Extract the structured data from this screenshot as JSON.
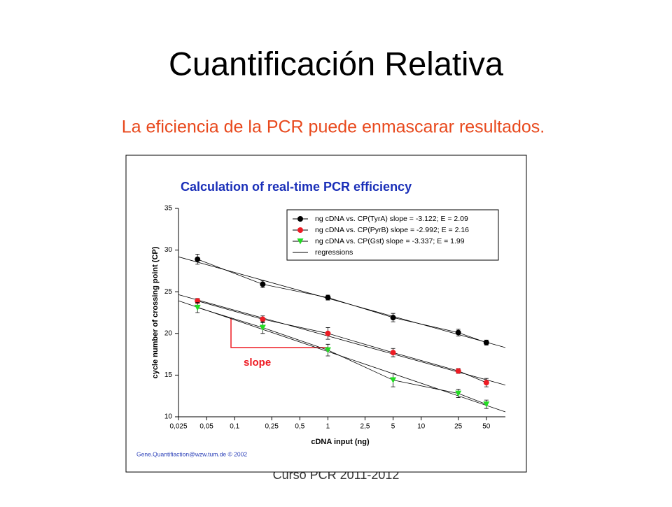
{
  "slide_title": "Cuantificación Relativa",
  "subtitle": "La eficiencia de la PCR puede enmascarar resultados.",
  "footer": "Curso PCR 2011-2012",
  "chart_data": {
    "type": "scatter",
    "title": "Calculation of real-time PCR efficiency",
    "x_label": "cDNA input (ng)",
    "y_label": "cycle number of crossing point (CP)",
    "credit": "Gene.Quantifiaction@wzw.tum.de © 2002",
    "annotation": "slope",
    "x_log": true,
    "xlim": [
      0.025,
      80
    ],
    "xticks": [
      {
        "value": 0.025,
        "label": "0,025"
      },
      {
        "value": 0.05,
        "label": "0,05"
      },
      {
        "value": 0.1,
        "label": "0,1"
      },
      {
        "value": 0.25,
        "label": "0,25"
      },
      {
        "value": 0.5,
        "label": "0,5"
      },
      1,
      {
        "value": 2.5,
        "label": "2,5"
      },
      5,
      10,
      25,
      50
    ],
    "ylim": [
      10,
      35
    ],
    "yticks": [
      10,
      15,
      20,
      25,
      30,
      35
    ],
    "x": [
      0.04,
      0.2,
      1,
      5,
      25,
      50
    ],
    "regression_label": "regressions",
    "legend": "upper right",
    "series": [
      {
        "name": "ng cDNA vs. CP(TyrA)  slope = -3.122; E = 2.09",
        "color": "#000000",
        "marker": "circle",
        "values": [
          28.9,
          25.9,
          24.3,
          21.9,
          20.1,
          18.9
        ],
        "errors": [
          0.6,
          0.4,
          0.3,
          0.5,
          0.4,
          0.3
        ]
      },
      {
        "name": "ng cDNA vs. CP(PyrB)  slope = -2.992; E = 2.16",
        "color": "#ee1c24",
        "marker": "circle",
        "values": [
          23.9,
          21.7,
          20.0,
          17.7,
          15.5,
          14.1
        ],
        "errors": [
          0.3,
          0.4,
          0.7,
          0.5,
          0.3,
          0.5
        ]
      },
      {
        "name": "ng cDNA vs. CP(Gst)    slope = -3.337; E = 1.99",
        "color": "#22dd22",
        "marker": "triangle",
        "values": [
          23.1,
          20.7,
          18.0,
          14.4,
          12.8,
          11.5
        ],
        "errors": [
          0.6,
          0.7,
          0.7,
          0.8,
          0.5,
          0.5
        ]
      }
    ]
  }
}
